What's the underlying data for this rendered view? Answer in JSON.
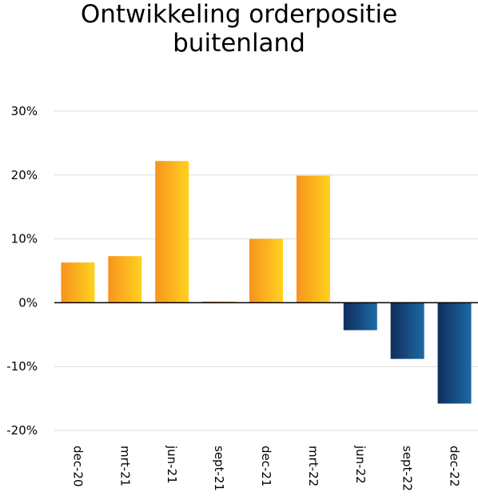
{
  "chart_data": {
    "type": "bar",
    "title_lines": [
      "Ontwikkeling orderpositie",
      "buitenland"
    ],
    "categories": [
      "dec-20",
      "mrt-21",
      "jun-21",
      "sept-21",
      "dec-21",
      "mrt-22",
      "jun-22",
      "sept-22",
      "dec-22"
    ],
    "values": [
      6.3,
      7.3,
      22.2,
      0.2,
      10.0,
      19.9,
      -4.3,
      -8.8,
      -15.8
    ],
    "y_ticks": [
      {
        "value": 30,
        "label": "30%"
      },
      {
        "value": 20,
        "label": "20%"
      },
      {
        "value": 10,
        "label": "10%"
      },
      {
        "value": 0,
        "label": "0%"
      },
      {
        "value": -10,
        "label": "-10%"
      },
      {
        "value": -20,
        "label": "-20%"
      }
    ],
    "ylim": [
      -20,
      30
    ],
    "grid": true,
    "colors": {
      "positive_start": "#f7931e",
      "positive_end": "#ffd21f",
      "negative_start": "#0f2d5c",
      "negative_end": "#1d6aa5",
      "grid": "#d9d9d9",
      "zero_line": "#000000"
    }
  }
}
